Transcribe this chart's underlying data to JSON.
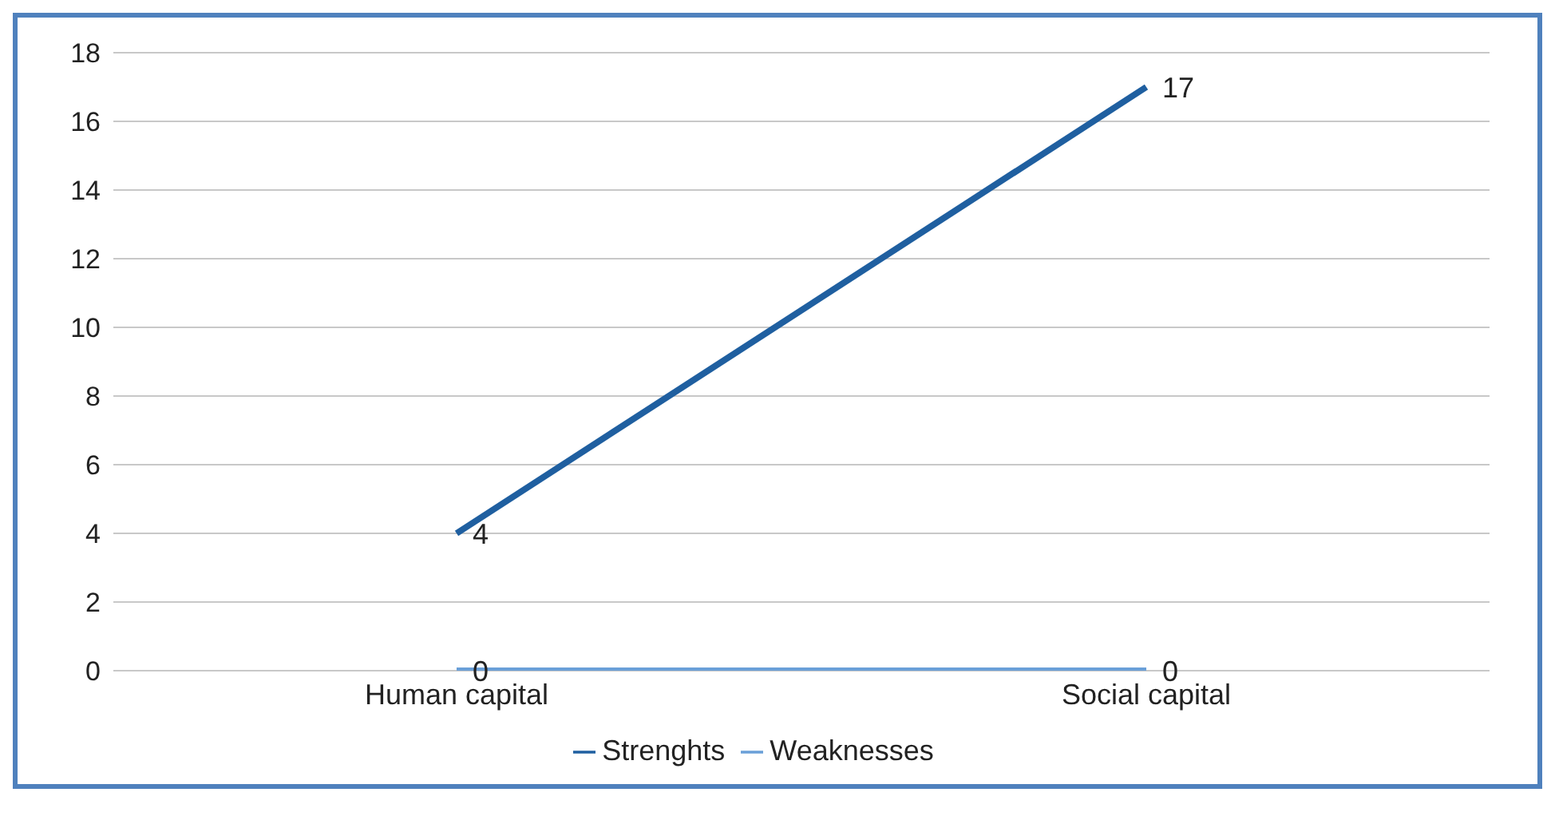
{
  "chart_data": {
    "type": "line",
    "categories": [
      "Human capital",
      "Social capital"
    ],
    "series": [
      {
        "name": "Strenghts",
        "color": "#1f5fa0",
        "values": [
          4,
          17
        ]
      },
      {
        "name": "Weaknesses",
        "color": "#6a9fd8",
        "values": [
          0,
          0
        ]
      }
    ],
    "ylim": [
      0,
      18
    ],
    "yticks": [
      0,
      2,
      4,
      6,
      8,
      10,
      12,
      14,
      16,
      18
    ],
    "grid": "y",
    "legend": "bottom",
    "data_labels": true,
    "marker": "none"
  }
}
